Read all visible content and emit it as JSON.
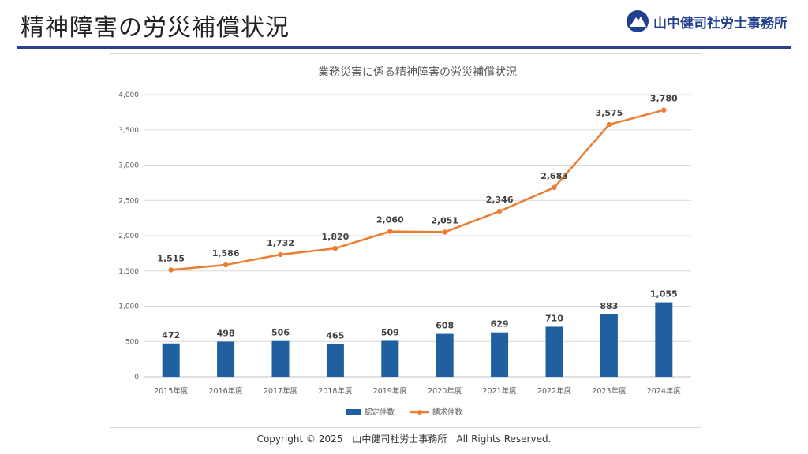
{
  "header": {
    "title": "精神障害の労災補償状況",
    "logo_text": "山中健司社労士事務所",
    "logo_icon": "mountain-logo-icon"
  },
  "footer": {
    "copyright": "Copyright © 2025　山中健司社労士事務所　All Rights Reserved."
  },
  "colors": {
    "bar": "#2160a0",
    "line": "#ed7d31",
    "grid": "#d9d9d9",
    "divider": "#2a3f8f",
    "brand": "#1f3f8f"
  },
  "chart_data": {
    "type": "bar",
    "title": "業務災害に係る精神障害の労災補償状況",
    "xlabel": "",
    "ylabel": "",
    "categories": [
      "2015年度",
      "2016年度",
      "2017年度",
      "2018年度",
      "2019年度",
      "2020年度",
      "2021年度",
      "2022年度",
      "2023年度",
      "2024年度"
    ],
    "y_ticks": [
      "0",
      "500",
      "1,000",
      "1,500",
      "2,000",
      "2,500",
      "3,000",
      "3,500",
      "4,000"
    ],
    "ylim": [
      0,
      4000
    ],
    "grid": true,
    "legend_position": "bottom",
    "series": [
      {
        "name": "認定件数",
        "type": "bar",
        "values": [
          472,
          498,
          506,
          465,
          509,
          608,
          629,
          710,
          883,
          1055
        ],
        "labels": [
          "472",
          "498",
          "506",
          "465",
          "509",
          "608",
          "629",
          "710",
          "883",
          "1,055"
        ]
      },
      {
        "name": "請求件数",
        "type": "line",
        "values": [
          1515,
          1586,
          1732,
          1820,
          2060,
          2051,
          2346,
          2683,
          3575,
          3780
        ],
        "labels": [
          "1,515",
          "1,586",
          "1,732",
          "1,820",
          "2,060",
          "2,051",
          "2,346",
          "2,683",
          "3,575",
          "3,780"
        ]
      }
    ]
  }
}
